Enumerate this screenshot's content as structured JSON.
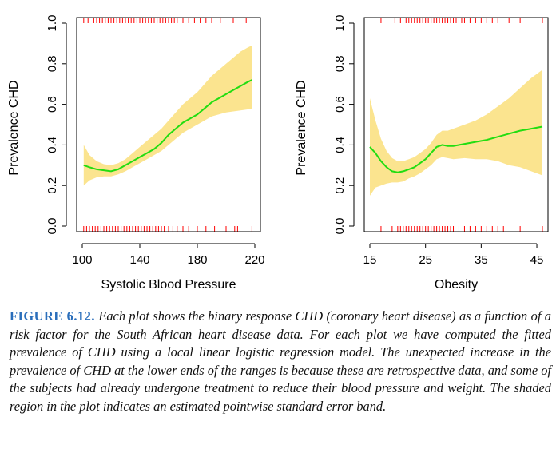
{
  "chart_data": [
    {
      "type": "line",
      "xlabel": "Systolic Blood Pressure",
      "ylabel": "Prevalence CHD",
      "xlim": [
        100,
        220
      ],
      "ylim": [
        0,
        1
      ],
      "xticks": [
        100,
        140,
        180,
        220
      ],
      "yticks": [
        0.0,
        0.2,
        0.4,
        0.6,
        0.8,
        1.0
      ],
      "ytick_labels": [
        "0.0",
        "0.2",
        "0.4",
        "0.6",
        "0.8",
        "1.0"
      ],
      "colors": {
        "fit": "#22dd11",
        "band": "#fbe48f",
        "rug": "#ff0000"
      },
      "fit": {
        "x": [
          101,
          105,
          110,
          115,
          120,
          125,
          130,
          135,
          140,
          145,
          150,
          155,
          160,
          165,
          170,
          175,
          180,
          185,
          190,
          195,
          200,
          205,
          210,
          215,
          218
        ],
        "y": [
          0.3,
          0.29,
          0.28,
          0.275,
          0.27,
          0.28,
          0.3,
          0.32,
          0.34,
          0.36,
          0.38,
          0.41,
          0.45,
          0.48,
          0.51,
          0.53,
          0.55,
          0.58,
          0.61,
          0.63,
          0.65,
          0.67,
          0.69,
          0.71,
          0.72
        ]
      },
      "band_upper": [
        0.4,
        0.35,
        0.32,
        0.305,
        0.3,
        0.31,
        0.33,
        0.36,
        0.39,
        0.42,
        0.45,
        0.48,
        0.52,
        0.56,
        0.6,
        0.63,
        0.66,
        0.7,
        0.74,
        0.77,
        0.8,
        0.83,
        0.86,
        0.88,
        0.89
      ],
      "band_lower": [
        0.2,
        0.225,
        0.24,
        0.245,
        0.245,
        0.255,
        0.27,
        0.29,
        0.31,
        0.33,
        0.35,
        0.37,
        0.4,
        0.43,
        0.46,
        0.48,
        0.5,
        0.52,
        0.54,
        0.55,
        0.56,
        0.565,
        0.57,
        0.575,
        0.58
      ],
      "rug_cases": [
        101,
        104,
        108,
        110,
        112,
        114,
        116,
        118,
        120,
        122,
        124,
        126,
        128,
        130,
        132,
        134,
        136,
        138,
        140,
        142,
        144,
        146,
        148,
        150,
        152,
        154,
        156,
        158,
        160,
        162,
        164,
        166,
        170,
        174,
        178,
        182,
        186,
        190,
        196,
        205,
        214
      ],
      "rug_controls": [
        101,
        103,
        105,
        107,
        109,
        111,
        113,
        115,
        117,
        119,
        121,
        123,
        125,
        127,
        129,
        131,
        133,
        135,
        137,
        139,
        141,
        143,
        145,
        147,
        149,
        151,
        153,
        155,
        157,
        160,
        163,
        166,
        170,
        174,
        180,
        186,
        192,
        200,
        206,
        208,
        218
      ]
    },
    {
      "type": "line",
      "xlabel": "Obesity",
      "ylabel": "Prevalence CHD",
      "xlim": [
        15,
        46
      ],
      "ylim": [
        0,
        1
      ],
      "xticks": [
        15,
        25,
        35,
        45
      ],
      "yticks": [
        0.0,
        0.2,
        0.4,
        0.6,
        0.8,
        1.0
      ],
      "ytick_labels": [
        "0.0",
        "0.2",
        "0.4",
        "0.6",
        "0.8",
        "1.0"
      ],
      "colors": {
        "fit": "#22dd11",
        "band": "#fbe48f",
        "rug": "#ff0000"
      },
      "fit": {
        "x": [
          15,
          16,
          17,
          18,
          19,
          20,
          21,
          22,
          23,
          24,
          25,
          26,
          27,
          28,
          29,
          30,
          32,
          34,
          36,
          38,
          40,
          42,
          44,
          46
        ],
        "y": [
          0.39,
          0.36,
          0.32,
          0.29,
          0.27,
          0.265,
          0.27,
          0.28,
          0.29,
          0.31,
          0.33,
          0.36,
          0.39,
          0.4,
          0.395,
          0.395,
          0.405,
          0.415,
          0.425,
          0.44,
          0.455,
          0.47,
          0.48,
          0.49
        ]
      },
      "band_upper": [
        0.63,
        0.52,
        0.43,
        0.37,
        0.335,
        0.32,
        0.32,
        0.33,
        0.34,
        0.36,
        0.38,
        0.41,
        0.45,
        0.47,
        0.47,
        0.48,
        0.5,
        0.52,
        0.55,
        0.59,
        0.63,
        0.68,
        0.73,
        0.77
      ],
      "band_lower": [
        0.15,
        0.19,
        0.2,
        0.21,
        0.215,
        0.215,
        0.22,
        0.235,
        0.245,
        0.26,
        0.28,
        0.3,
        0.33,
        0.34,
        0.335,
        0.33,
        0.335,
        0.33,
        0.33,
        0.32,
        0.3,
        0.29,
        0.27,
        0.25
      ],
      "rug_cases": [
        17,
        19.5,
        20.5,
        21.5,
        22,
        22.5,
        23,
        23.5,
        24,
        24.5,
        25,
        25.5,
        26,
        26.5,
        27,
        27.5,
        28,
        28.5,
        29,
        29.5,
        30,
        30.5,
        31,
        31.5,
        32,
        33,
        34,
        35,
        36,
        37,
        38,
        40,
        42,
        46
      ],
      "rug_controls": [
        17,
        19,
        20,
        20.5,
        21,
        21.5,
        22,
        22.5,
        23,
        23.5,
        24,
        24.5,
        25,
        25.5,
        26,
        26.5,
        27,
        27.5,
        28,
        28.5,
        29,
        29.5,
        30,
        31,
        32,
        33,
        34,
        35,
        36,
        37,
        38,
        39,
        42,
        46
      ]
    }
  ],
  "caption": {
    "label": "FIGURE 6.12.",
    "text": "Each plot shows the binary response CHD (coronary heart disease) as a function of a risk factor for the South African heart disease data. For each plot we have computed the fitted prevalence of CHD using a local linear logistic regression model. The unexpected increase in the prevalence of CHD at the lower ends of the ranges is because these are retrospective data, and some of the subjects had already undergone treatment to reduce their blood pressure and weight. The shaded region in the plot indicates an estimated pointwise standard error band."
  }
}
